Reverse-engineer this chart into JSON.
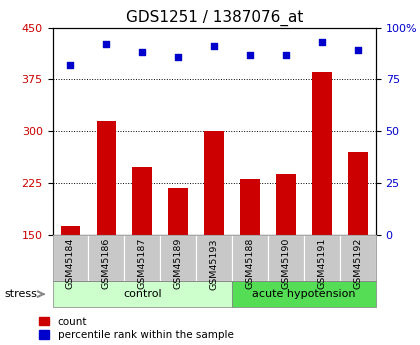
{
  "title": "GDS1251 / 1387076_at",
  "samples": [
    "GSM45184",
    "GSM45186",
    "GSM45187",
    "GSM45189",
    "GSM45193",
    "GSM45188",
    "GSM45190",
    "GSM45191",
    "GSM45192"
  ],
  "counts": [
    163,
    315,
    248,
    218,
    300,
    230,
    238,
    385,
    270
  ],
  "percentiles": [
    82,
    92,
    88,
    86,
    91,
    87,
    87,
    93,
    89
  ],
  "groups": [
    {
      "label": "control",
      "start": 0,
      "end": 5,
      "color": "#ccffcc",
      "dark_color": "#88ee88"
    },
    {
      "label": "acute hypotension",
      "start": 5,
      "end": 9,
      "color": "#66dd66",
      "dark_color": "#44cc44"
    }
  ],
  "stress_label": "stress",
  "ylim_left": [
    150,
    450
  ],
  "ylim_right": [
    0,
    100
  ],
  "yticks_left": [
    150,
    225,
    300,
    375,
    450
  ],
  "yticks_right": [
    0,
    25,
    50,
    75,
    100
  ],
  "bar_color": "#cc0000",
  "scatter_color": "#0000cc",
  "bar_width": 0.55,
  "grid_color": "#000000",
  "sample_bg_color": "#c8c8c8",
  "legend_count_label": "count",
  "legend_pct_label": "percentile rank within the sample",
  "title_fontsize": 11,
  "tick_fontsize": 8
}
